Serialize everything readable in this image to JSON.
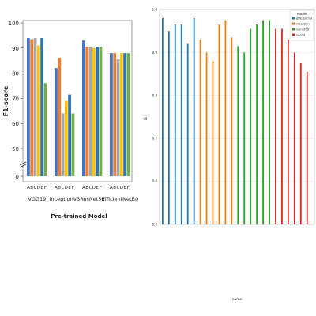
{
  "chart_data": [
    {
      "type": "bar",
      "categories": [
        "VGG19",
        "InceptionV3",
        "ResNet50",
        "EfficientNetB0"
      ],
      "sub_labels": [
        "A",
        "B",
        "C",
        "D",
        "E",
        "F"
      ],
      "series": [
        {
          "name": "A",
          "values": [
            94,
            82,
            93,
            88
          ]
        },
        {
          "name": "B",
          "values": [
            93.5,
            86,
            90.5,
            88
          ]
        },
        {
          "name": "C",
          "values": [
            94,
            64,
            90.5,
            85.5
          ]
        },
        {
          "name": "D",
          "values": [
            91,
            69,
            90,
            88
          ]
        },
        {
          "name": "E",
          "values": [
            94,
            71.5,
            90.5,
            88
          ]
        },
        {
          "name": "F",
          "values": [
            76,
            64,
            90.5,
            88
          ]
        }
      ],
      "xlabel": "Pre-trained Model",
      "ylabel": "F1-score",
      "yticks": [
        0,
        50,
        60,
        70,
        80,
        90,
        100
      ],
      "ylim": [
        0,
        100
      ],
      "broken_axis": true,
      "grid": false,
      "colors": [
        "#4472c4",
        "#ed7d31",
        "#a5a5a5",
        "#ffc000",
        "#2e75b6",
        "#70ad47"
      ]
    },
    {
      "type": "bar",
      "xlabel": "name",
      "ylabel": "f1",
      "ylim": [
        0.5,
        1.0
      ],
      "yticks": [
        "0.5",
        "0.6",
        "0.7",
        "0.8",
        "0.9",
        "1.0"
      ],
      "grid": true,
      "legend": {
        "title": "model",
        "position": "top-right"
      },
      "series": [
        {
          "name": "efficientnet",
          "color": "#1f77b4",
          "values": [
            0.98,
            0.95,
            0.965,
            0.965,
            0.92,
            0.98
          ]
        },
        {
          "name": "inception",
          "color": "#ff7f0e",
          "values": [
            0.93,
            0.9,
            0.88,
            0.965,
            0.975,
            0.935
          ]
        },
        {
          "name": "resnet50",
          "color": "#2ca02c",
          "values": [
            0.915,
            0.9,
            0.955,
            0.965,
            0.975,
            0.975
          ]
        },
        {
          "name": "vgg19",
          "color": "#d62728",
          "values": [
            0.955,
            0.955,
            0.93,
            0.9,
            0.875,
            0.855
          ]
        }
      ]
    }
  ]
}
